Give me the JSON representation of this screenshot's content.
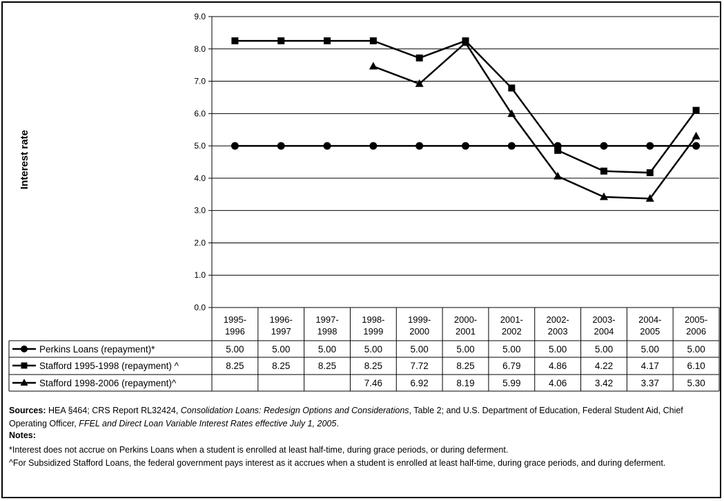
{
  "chart_data": {
    "type": "line",
    "ylabel": "Interest rate",
    "ylim": [
      0,
      9
    ],
    "ytick_labels": [
      "0.0",
      "1.0",
      "2.0",
      "3.0",
      "4.0",
      "5.0",
      "6.0",
      "7.0",
      "8.0",
      "9.0"
    ],
    "grid": true,
    "categories": [
      [
        "1995-",
        "1996"
      ],
      [
        "1996-",
        "1997"
      ],
      [
        "1997-",
        "1998"
      ],
      [
        "1998-",
        "1999"
      ],
      [
        "1999-",
        "2000"
      ],
      [
        "2000-",
        "2001"
      ],
      [
        "2001-",
        "2002"
      ],
      [
        "2002-",
        "2003"
      ],
      [
        "2003-",
        "2004"
      ],
      [
        "2004-",
        "2005"
      ],
      [
        "2005-",
        "2006"
      ]
    ],
    "series": [
      {
        "name": "Perkins Loans (repayment)*",
        "marker": "circle",
        "values": [
          5.0,
          5.0,
          5.0,
          5.0,
          5.0,
          5.0,
          5.0,
          5.0,
          5.0,
          5.0,
          5.0
        ],
        "labels": [
          "5.00",
          "5.00",
          "5.00",
          "5.00",
          "5.00",
          "5.00",
          "5.00",
          "5.00",
          "5.00",
          "5.00",
          "5.00"
        ]
      },
      {
        "name": "Stafford 1995-1998 (repayment) ^",
        "marker": "square",
        "values": [
          8.25,
          8.25,
          8.25,
          8.25,
          7.72,
          8.25,
          6.79,
          4.86,
          4.22,
          4.17,
          6.1
        ],
        "labels": [
          "8.25",
          "8.25",
          "8.25",
          "8.25",
          "7.72",
          "8.25",
          "6.79",
          "4.86",
          "4.22",
          "4.17",
          "6.10"
        ]
      },
      {
        "name": "Stafford 1998-2006 (repayment)^",
        "marker": "triangle",
        "values": [
          null,
          null,
          null,
          7.46,
          6.92,
          8.19,
          5.99,
          4.06,
          3.42,
          3.37,
          5.3
        ],
        "labels": [
          "",
          "",
          "",
          "7.46",
          "6.92",
          "8.19",
          "5.99",
          "4.06",
          "3.42",
          "3.37",
          "5.30"
        ]
      }
    ]
  },
  "footer": {
    "sources_label": "Sources:",
    "sources_part1": " HEA §464; CRS Report RL32424, ",
    "sources_italic1": "Consolidation Loans: Redesign Options and Considerations",
    "sources_part2": ", Table 2; and U.S. Department of Education, Federal Student Aid, Chief Operating Officer, ",
    "sources_italic2": "FFEL and Direct Loan Variable Interest Rates effective July 1, 2005",
    "sources_part3": ".",
    "notes_label": "Notes:",
    "note1": "*Interest does not accrue on Perkins Loans when a student is enrolled at least half-time, during grace periods, or during deferment.",
    "note2": "^For Subsidized Stafford Loans, the federal government pays interest as it accrues when a student is enrolled at least half-time, during grace periods, and during deferment."
  }
}
